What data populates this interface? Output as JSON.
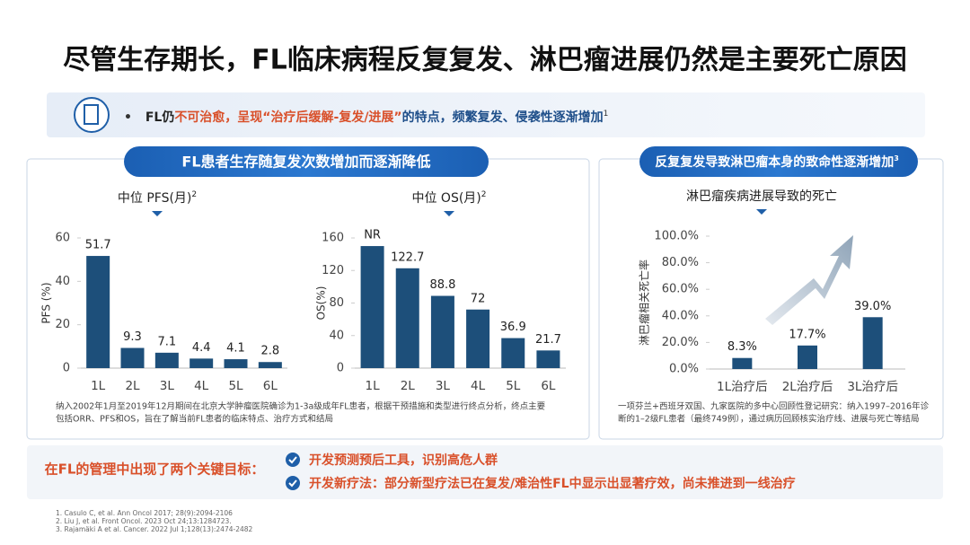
{
  "title": "尽管生存期长，FL临床病程反复复发、淋巴瘤进展仍然是主要死亡原因",
  "banner": {
    "bullet": "•",
    "lead": "FL仍",
    "highlight": "不可治愈，呈现“治疗后缓解-复发/进展”",
    "rest": "的特点，频繁复发、侵袭性逐渐增加",
    "ref": "1"
  },
  "left_panel": {
    "heading": "FL患者生存随复发次数增加而逐渐降低",
    "note": [
      "纳入2002年1月至2019年12月期间在北京大学肿瘤医院确诊为1-3a级成年FL患者，根据干预措施和类型进行终点分析，终点主要",
      "包括ORR、PFS和OS，旨在了解当前FL患者的临床特点、治疗方式和结局"
    ]
  },
  "right_panel": {
    "heading": "反复复发导致淋巴瘤本身的致命性逐渐增加",
    "ref": "3",
    "note": [
      "一项芬兰+西班牙双国、九家医院的多中心回顾性登记研究：纳入1997–2016年诊",
      "断的1–2级FL患者（最终749例），通过病历回顾核实治疗线、进展与死亡等结局"
    ]
  },
  "goals": {
    "label": "在FL的管理中出现了两个关键目标：",
    "items": [
      "开发预测预后工具，识别高危人群",
      "开发新疗法：部分新型疗法已在复发/难治性FL中显示出显著疗效，尚未推进到一线治疗"
    ]
  },
  "references": [
    "1. Casulo C, et al. Ann Oncol 2017; 28(9):2094-2106",
    "2. Liu J, et al. Front Oncol. 2023 Oct 24;13:1284723.",
    "3. Rajamäki A et al. Cancer. 2022 Jul 1;128(13):2474-2482"
  ],
  "chart_data": [
    {
      "type": "bar",
      "title": "中位 PFS(月)",
      "title_ref": "2",
      "ylabel": "PFS (%)",
      "categories": [
        "1L",
        "2L",
        "3L",
        "4L",
        "5L",
        "6L"
      ],
      "values": [
        51.7,
        9.3,
        7.1,
        4.4,
        4.1,
        2.8
      ],
      "ylim": [
        0,
        60
      ],
      "yticks": [
        0,
        20,
        40,
        60
      ],
      "color": "#1d4f7a"
    },
    {
      "type": "bar",
      "title": "中位 OS(月)",
      "title_ref": "2",
      "ylabel": "OS(%)",
      "categories": [
        "1L",
        "2L",
        "3L",
        "4L",
        "5L",
        "6L"
      ],
      "values": [
        150,
        122.7,
        88.8,
        72,
        36.9,
        21.7
      ],
      "value_labels": [
        "NR",
        "122.7",
        "88.8",
        "72",
        "36.9",
        "21.7"
      ],
      "ylim": [
        0,
        160
      ],
      "yticks": [
        0,
        40,
        80,
        120,
        160
      ],
      "color": "#1d4f7a"
    },
    {
      "type": "bar",
      "title": "淋巴瘤疾病进展导致的死亡",
      "ylabel": "淋巴瘤相关死亡率",
      "categories": [
        "1L治疗后",
        "2L治疗后",
        "3L治疗后"
      ],
      "values": [
        8.3,
        17.7,
        39.0
      ],
      "value_labels": [
        "8.3%",
        "17.7%",
        "39.0%"
      ],
      "ylim": [
        0,
        100
      ],
      "yticks": [
        {
          "value": 0,
          "label": "0.0%"
        },
        {
          "value": 20,
          "label": "20.0%"
        },
        {
          "value": 40,
          "label": "40.0%"
        },
        {
          "value": 60,
          "label": "60.0%"
        },
        {
          "value": 80,
          "label": "80.0%"
        },
        {
          "value": 100,
          "label": "100.0%"
        }
      ],
      "color": "#1d4f7a"
    }
  ]
}
